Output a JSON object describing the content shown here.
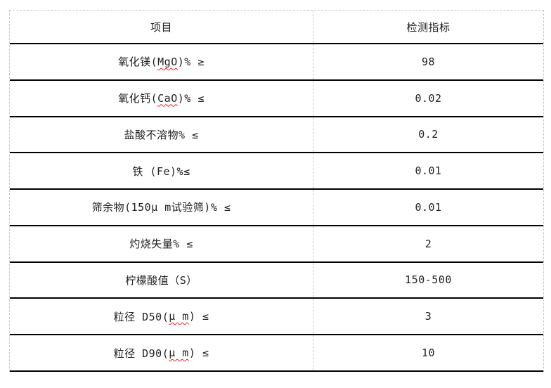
{
  "colors": {
    "row_line": "#000000",
    "grid_dashed": "#c9c9c9",
    "text": "#212121",
    "squiggle": "#ee2222",
    "background": "#ffffff"
  },
  "table": {
    "headers": {
      "item": "项目",
      "value": "检测指标"
    },
    "rows": [
      {
        "pre": "氧化镁(",
        "sq": "MgO",
        "post": ")% ≥",
        "value": "98"
      },
      {
        "pre": "氧化钙(",
        "sq": "CaO",
        "post": ")% ≤",
        "value": "0.02"
      },
      {
        "pre": "盐酸不溶物% ≤",
        "sq": "",
        "post": "",
        "value": "0.2"
      },
      {
        "pre": "铁 (Fe)%≤",
        "sq": "",
        "post": "",
        "value": "0.01"
      },
      {
        "pre": "筛余物(150μ m试验筛)% ≤",
        "sq": "",
        "post": "",
        "value": "0.01"
      },
      {
        "pre": "灼烧失量% ≤",
        "sq": "",
        "post": "",
        "value": "2"
      },
      {
        "pre": "柠檬酸值（S）",
        "sq": "",
        "post": "",
        "value": "150-500"
      },
      {
        "pre": "粒径 D50(",
        "sq": "μ m",
        "post": ") ≤",
        "value": "3"
      },
      {
        "pre": "粒径 D90(",
        "sq": "μ m",
        "post": ") ≤",
        "value": "10"
      }
    ]
  }
}
